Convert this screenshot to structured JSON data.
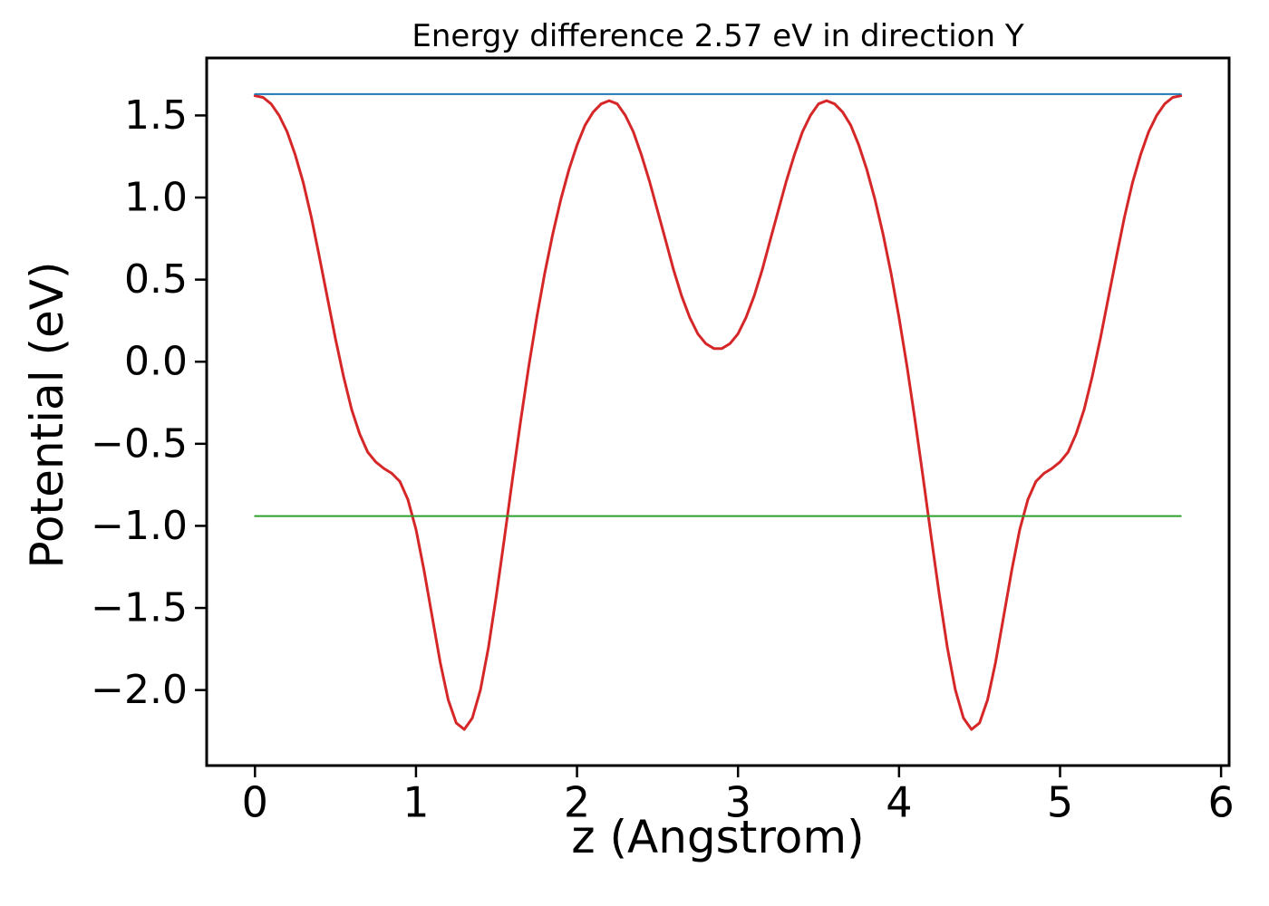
{
  "chart_data": {
    "type": "line",
    "title": "Energy difference 2.57 eV in direction Y",
    "xlabel": "z (Angstrom)",
    "ylabel": "Potential (eV)",
    "xlim": [
      -0.3,
      6.05
    ],
    "ylim": [
      -2.46,
      1.85
    ],
    "x_ticks": [
      0,
      1,
      2,
      3,
      4,
      5,
      6
    ],
    "y_ticks": [
      1.5,
      1.0,
      0.5,
      0.0,
      -0.5,
      -1.0,
      -1.5,
      -2.0
    ],
    "grid": false,
    "legend": false,
    "background_color": "#ffffff",
    "axis_color": "#000000",
    "series": [
      {
        "name": "red-potential-curve",
        "color": "#d62728",
        "width": 3,
        "x": [
          0,
          0.05,
          0.1,
          0.15,
          0.2,
          0.25,
          0.3,
          0.35,
          0.4,
          0.45,
          0.5,
          0.55,
          0.6,
          0.65,
          0.7,
          0.75,
          0.8,
          0.85,
          0.9,
          0.95,
          1,
          1.05,
          1.1,
          1.15,
          1.2,
          1.25,
          1.3,
          1.35,
          1.4,
          1.45,
          1.5,
          1.55,
          1.6,
          1.65,
          1.7,
          1.75,
          1.8,
          1.85,
          1.9,
          1.95,
          2,
          2.05,
          2.1,
          2.15,
          2.2,
          2.25,
          2.3,
          2.35,
          2.4,
          2.45,
          2.5,
          2.55,
          2.6,
          2.65,
          2.7,
          2.75,
          2.8,
          2.85,
          2.9,
          2.95,
          3,
          3.05,
          3.1,
          3.15,
          3.2,
          3.25,
          3.3,
          3.35,
          3.4,
          3.45,
          3.5,
          3.55,
          3.6,
          3.65,
          3.7,
          3.75,
          3.8,
          3.85,
          3.9,
          3.95,
          4,
          4.05,
          4.1,
          4.15,
          4.2,
          4.25,
          4.3,
          4.35,
          4.4,
          4.45,
          4.5,
          4.55,
          4.6,
          4.65,
          4.7,
          4.75,
          4.8,
          4.85,
          4.9,
          4.95,
          5,
          5.05,
          5.1,
          5.15,
          5.2,
          5.25,
          5.3,
          5.35,
          5.4,
          5.45,
          5.5,
          5.55,
          5.6,
          5.65,
          5.7,
          5.75
        ],
        "y": [
          1.62,
          1.61,
          1.57,
          1.5,
          1.4,
          1.26,
          1.09,
          0.88,
          0.64,
          0.39,
          0.14,
          -0.09,
          -0.29,
          -0.44,
          -0.55,
          -0.61,
          -0.65,
          -0.68,
          -0.73,
          -0.84,
          -1.02,
          -1.27,
          -1.55,
          -1.83,
          -2.06,
          -2.2,
          -2.24,
          -2.17,
          -2.0,
          -1.74,
          -1.42,
          -1.07,
          -0.71,
          -0.36,
          -0.03,
          0.27,
          0.54,
          0.78,
          0.99,
          1.17,
          1.32,
          1.44,
          1.52,
          1.57,
          1.59,
          1.57,
          1.5,
          1.4,
          1.26,
          1.1,
          0.92,
          0.74,
          0.56,
          0.4,
          0.27,
          0.17,
          0.11,
          0.08,
          0.08,
          0.11,
          0.17,
          0.27,
          0.4,
          0.56,
          0.74,
          0.92,
          1.1,
          1.26,
          1.4,
          1.5,
          1.57,
          1.59,
          1.57,
          1.52,
          1.44,
          1.32,
          1.17,
          0.99,
          0.78,
          0.54,
          0.27,
          -0.03,
          -0.36,
          -0.71,
          -1.07,
          -1.42,
          -1.74,
          -2.0,
          -2.17,
          -2.24,
          -2.2,
          -2.06,
          -1.83,
          -1.55,
          -1.27,
          -1.02,
          -0.84,
          -0.73,
          -0.68,
          -0.65,
          -0.61,
          -0.55,
          -0.44,
          -0.29,
          -0.09,
          0.14,
          0.39,
          0.64,
          0.88,
          1.09,
          1.26,
          1.4,
          1.5,
          1.57,
          1.61,
          1.62
        ]
      },
      {
        "name": "blue-horizontal-line",
        "color": "#1f77b4",
        "width": 2,
        "x": [
          0,
          5.75
        ],
        "y": [
          1.63,
          1.63
        ]
      },
      {
        "name": "green-horizontal-line",
        "color": "#2ca02c",
        "width": 2,
        "x": [
          0,
          5.75
        ],
        "y": [
          -0.94,
          -0.94
        ]
      }
    ]
  }
}
